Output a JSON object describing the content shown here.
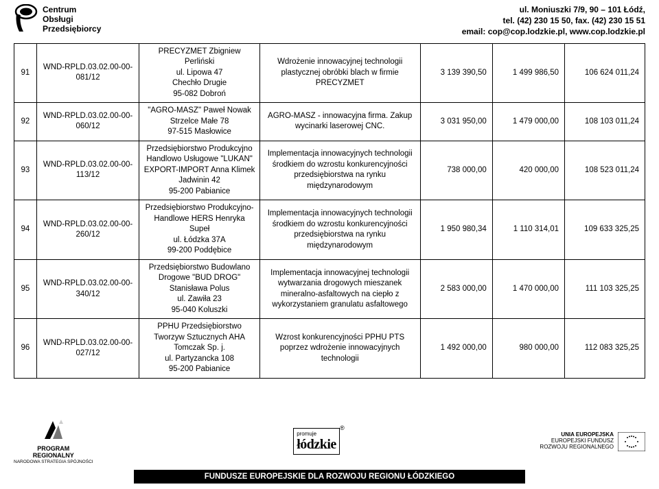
{
  "header": {
    "logo_text_l1": "Centrum",
    "logo_text_l2": "Obsługi",
    "logo_text_l3": "Przedsiębiorcy",
    "addr_l1": "ul. Moniuszki 7/9, 90 – 101 Łódź,",
    "addr_l2": "tel. (42) 230 15 50, fax. (42) 230 15 51",
    "addr_l3": "email: cop@cop.lodzkie.pl, www.cop.lodzkie.pl"
  },
  "rows": [
    {
      "num": "91",
      "code": "WND-RPLD.03.02.00-00-081/12",
      "company": "PRECYZMET Zbigniew Perliński\nul. Lipowa 47\nChechło Drugie\n95-082 Dobroń",
      "desc": "Wdrożenie innowacyjnej technologii plastycznej obróbki blach w firmie PRECYZMET",
      "v1": "3 139 390,50",
      "v2": "1 499 986,50",
      "v3": "106 624 011,24"
    },
    {
      "num": "92",
      "code": "WND-RPLD.03.02.00-00-060/12",
      "company": "\"AGRO-MASZ\" Paweł Nowak\nStrzelce Małe 78\n97-515 Masłowice",
      "desc": "AGRO-MASZ - innowacyjna firma. Zakup wycinarki laserowej CNC.",
      "v1": "3 031 950,00",
      "v2": "1 479 000,00",
      "v3": "108 103 011,24"
    },
    {
      "num": "93",
      "code": "WND-RPLD.03.02.00-00-113/12",
      "company": "Przedsiębiorstwo Produkcyjno Handlowo Usługowe \"LUKAN\" EXPORT-IMPORT Anna Klimek\nJadwinin 42\n95-200 Pabianice",
      "desc": "Implementacja innowacyjnych technologii środkiem do wzrostu konkurencyjności przedsiębiorstwa na rynku międzynarodowym",
      "v1": "738 000,00",
      "v2": "420 000,00",
      "v3": "108 523 011,24"
    },
    {
      "num": "94",
      "code": "WND-RPLD.03.02.00-00-260/12",
      "company": "Przedsiębiorstwo Produkcyjno-Handlowe HERS Henryka Supeł\nul. Łódzka 37A\n99-200 Poddębice",
      "desc": "Implementacja innowacyjnych technologii środkiem do wzrostu konkurencyjności przedsiębiorstwa na rynku międzynarodowym",
      "v1": "1 950 980,34",
      "v2": "1 110 314,01",
      "v3": "109 633 325,25"
    },
    {
      "num": "95",
      "code": "WND-RPLD.03.02.00-00-340/12",
      "company": "Przedsiębiorstwo Budowlano Drogowe \"BUD DROG\" Stanisława Polus\nul. Zawiła 23\n95-040 Koluszki",
      "desc": "Implementacja innowacyjnej technologii wytwarzania drogowych mieszanek mineralno-asfaltowych na ciepło z wykorzystaniem granulatu asfaltowego",
      "v1": "2 583 000,00",
      "v2": "1 470 000,00",
      "v3": "111 103 325,25"
    },
    {
      "num": "96",
      "code": "WND-RPLD.03.02.00-00-027/12",
      "company": "PPHU Przedsiębiorstwo Tworzyw Sztucznych AHA Tomczak Sp. j.\nul. Partyzancka 108\n95-200 Pabianice",
      "desc": "Wzrost konkurencyjności PPHU PTS poprzez wdrożenie innowacyjnych technologii",
      "v1": "1 492 000,00",
      "v2": "980 000,00",
      "v3": "112 083 325,25"
    }
  ],
  "footer": {
    "prog_l1": "PROGRAM",
    "prog_l2": "REGIONALNY",
    "prog_l3": "NARODOWA STRATEGIA SPÓJNOŚCI",
    "promuje": "promuje",
    "lodzkie": "łódzkie",
    "eu_l1": "UNIA EUROPEJSKA",
    "eu_l2": "EUROPEJSKI FUNDUSZ",
    "eu_l3": "ROZWOJU REGIONALNEGO",
    "banner": "FUNDUSZE EUROPEJSKIE DLA ROZWOJU REGIONU ŁÓDZKIEGO"
  },
  "colors": {
    "border": "#000000",
    "bg": "#ffffff",
    "text": "#000000"
  }
}
